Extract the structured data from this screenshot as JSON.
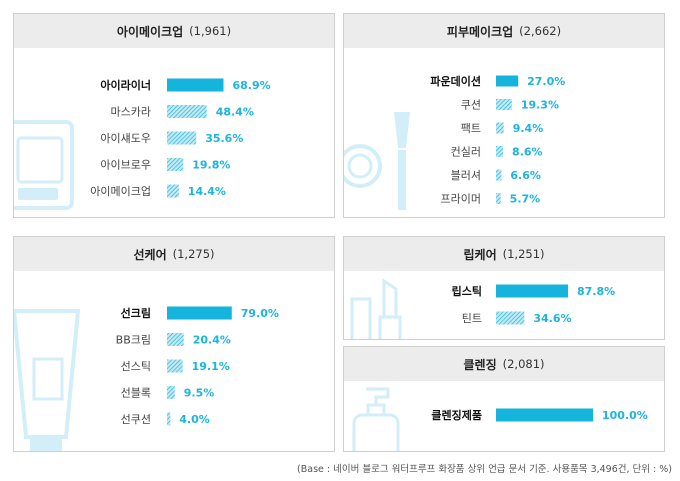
{
  "colors": {
    "accent": "#1cb4e0",
    "bar_top": "#14b4dc",
    "hatch_bg": "#bfe9f4",
    "hatch_line": "#22b2d8",
    "header_bg": "#ececec",
    "deco": "#d2eef8"
  },
  "footnote": "(Base : 네이버 블로그 워터프루프 화장품 상위 언급 문서 기준. 사용품목 3,496건, 단위 : %)",
  "chart_data": [
    {
      "type": "bar",
      "title": "아이메이크업",
      "count": "(1,961)",
      "categories": [
        "아이라이너",
        "마스카라",
        "아이섀도우",
        "아이브로우",
        "아이메이크업"
      ],
      "values": [
        68.9,
        48.4,
        35.6,
        19.8,
        14.4
      ],
      "value_labels": [
        "68.9%",
        "48.4%",
        "35.6%",
        "19.8%",
        "14.4%"
      ],
      "xlim": [
        0,
        100
      ]
    },
    {
      "type": "bar",
      "title": "피부메이크업",
      "count": "(2,662)",
      "categories": [
        "파운데이션",
        "쿠션",
        "팩트",
        "컨실러",
        "블러셔",
        "프라이머"
      ],
      "values": [
        27.0,
        19.3,
        9.4,
        8.6,
        6.6,
        5.7
      ],
      "value_labels": [
        "27.0%",
        "19.3%",
        "9.4%",
        "8.6%",
        "6.6%",
        "5.7%"
      ],
      "xlim": [
        0,
        100
      ]
    },
    {
      "type": "bar",
      "title": "선케어",
      "count": "(1,275)",
      "categories": [
        "선크림",
        "BB크림",
        "선스틱",
        "선블록",
        "선쿠션"
      ],
      "values": [
        79.0,
        20.4,
        19.1,
        9.5,
        4.0
      ],
      "value_labels": [
        "79.0%",
        "20.4%",
        "19.1%",
        "9.5%",
        "4.0%"
      ],
      "xlim": [
        0,
        100
      ]
    },
    {
      "type": "bar",
      "title": "립케어",
      "count": "(1,251)",
      "categories": [
        "립스틱",
        "틴트"
      ],
      "values": [
        87.8,
        34.6
      ],
      "value_labels": [
        "87.8%",
        "34.6%"
      ],
      "xlim": [
        0,
        100
      ]
    },
    {
      "type": "bar",
      "title": "클렌징",
      "count": "(2,081)",
      "categories": [
        "클렌징제품"
      ],
      "values": [
        100.0
      ],
      "value_labels": [
        "100.0%"
      ],
      "xlim": [
        0,
        100
      ]
    }
  ]
}
